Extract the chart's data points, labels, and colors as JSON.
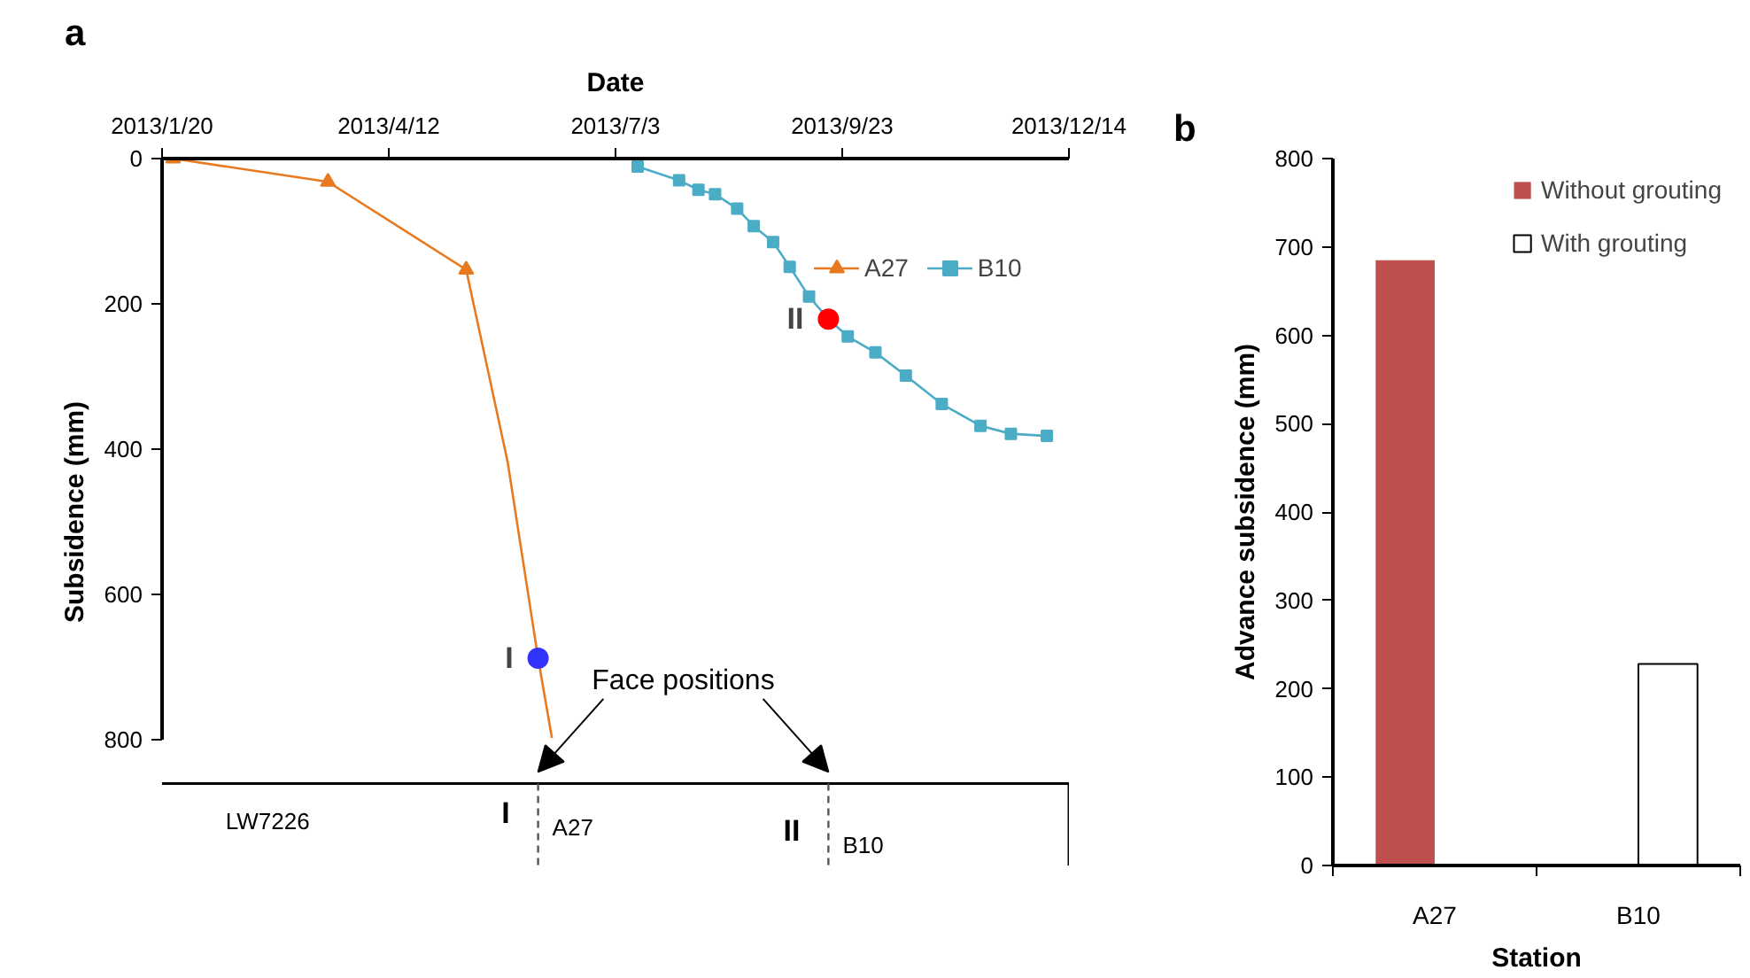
{
  "chart_data": [
    {
      "type": "line",
      "title": "a",
      "xlabel": "Date",
      "ylabel": "Subsidence (mm)",
      "xlim": [
        "2013-01-20",
        "2013-12-14"
      ],
      "xticks": [
        {
          "value": "2013-01-20",
          "label": "2013/1/20"
        },
        {
          "value": "2013-04-12",
          "label": "2013/4/12"
        },
        {
          "value": "2013-07-03",
          "label": "2013/7/3"
        },
        {
          "value": "2013-09-23",
          "label": "2013/9/23"
        },
        {
          "value": "2013-12-14",
          "label": "2013/12/14"
        }
      ],
      "ylim": [
        800,
        0
      ],
      "yticks": [
        0,
        200,
        400,
        600,
        800
      ],
      "grid": false,
      "legend": "top right",
      "series": [
        {
          "name": "A27",
          "color": "#e8791e",
          "marker": "triangle",
          "x": [
            "2013-01-24",
            "2013-03-21",
            "2013-05-10"
          ],
          "values": [
            0,
            32,
            153
          ]
        },
        {
          "color": "#e8791e",
          "marker": "none",
          "x": [
            "2013-05-10",
            "2013-05-25",
            "2013-06-05",
            "2013-06-10"
          ],
          "values": [
            153,
            418,
            688,
            798
          ]
        },
        {
          "name": "B10",
          "color": "#4bacc6",
          "marker": "square",
          "x": [
            "2013-07-11",
            "2013-07-26",
            "2013-08-02",
            "2013-08-08",
            "2013-08-16",
            "2013-08-22",
            "2013-08-29",
            "2013-09-04",
            "2013-09-11",
            "2013-09-18",
            "2013-09-25",
            "2013-10-05",
            "2013-10-16",
            "2013-10-29",
            "2013-11-12",
            "2013-11-23",
            "2013-12-06"
          ],
          "values": [
            11,
            30,
            43,
            49,
            69,
            93,
            115,
            149,
            190,
            221,
            245,
            267,
            299,
            338,
            368,
            379,
            382
          ]
        },
        {
          "type": "scatter",
          "marker": "circle",
          "x": [
            "2013-06-05",
            "2013-09-18"
          ],
          "values": [
            688,
            221
          ],
          "colors": [
            "#3333ff",
            "#ff0000"
          ]
        }
      ],
      "annotations": [
        {
          "text": "I",
          "x": "2013-06-05",
          "y": 688
        },
        {
          "text": "II",
          "x": "2013-09-18",
          "y": 221
        },
        "Face positions",
        "LW7226",
        "I",
        "A27",
        "II",
        "B10"
      ]
    },
    {
      "type": "bar",
      "title": "b",
      "xlabel": "Station",
      "ylabel": "Advance subsidence (mm)",
      "categories": [
        "A27",
        "B10"
      ],
      "ylim": [
        0,
        800
      ],
      "yticks": [
        0,
        100,
        200,
        300,
        400,
        500,
        600,
        700,
        800
      ],
      "grid": false,
      "legend": "top right",
      "series": [
        {
          "name": "Without grouting",
          "color": "#c0504d",
          "values": [
            685,
            null
          ]
        },
        {
          "name": "With grouting",
          "color": "#ffffff",
          "values": [
            null,
            228
          ]
        }
      ]
    }
  ]
}
